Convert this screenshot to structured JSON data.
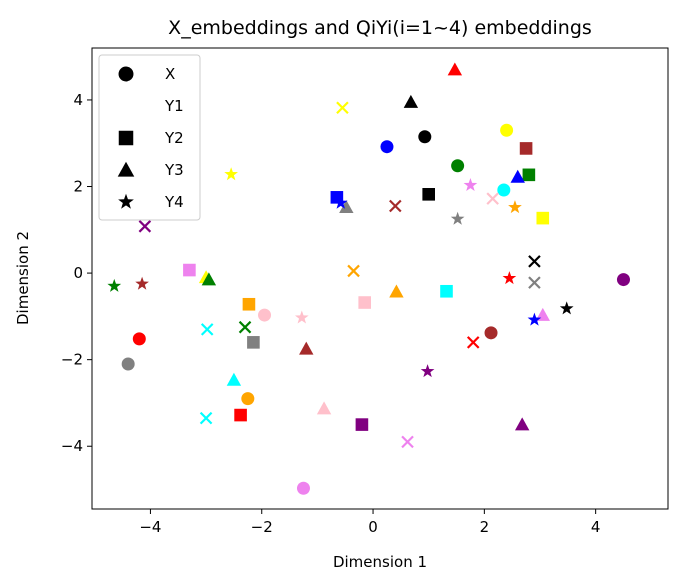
{
  "chart_data": {
    "type": "scatter",
    "title": "X_embeddings and QiYi(i=1~4) embeddings",
    "xlabel": "Dimension 1",
    "ylabel": "Dimension 2",
    "xlim": [
      -5.05,
      5.3
    ],
    "ylim": [
      -5.45,
      5.2
    ],
    "xticks": [
      -4,
      -2,
      0,
      2,
      4
    ],
    "yticks": [
      -4,
      -2,
      0,
      2,
      4
    ],
    "grid": false,
    "legend": {
      "placement": "upper-left",
      "entries": [
        {
          "label": "X",
          "marker": "circle"
        },
        {
          "label": "Y1",
          "marker": "x"
        },
        {
          "label": "Y2",
          "marker": "square"
        },
        {
          "label": "Y3",
          "marker": "triangle"
        },
        {
          "label": "Y4",
          "marker": "star"
        }
      ]
    },
    "series": [
      {
        "name": "X",
        "marker": "circle",
        "points": [
          {
            "x": 0.93,
            "y": 3.15,
            "color": "#000000"
          },
          {
            "x": 2.4,
            "y": 3.3,
            "color": "#ffff00"
          },
          {
            "x": 0.25,
            "y": 2.92,
            "color": "#0000ff"
          },
          {
            "x": 1.52,
            "y": 2.48,
            "color": "#008000"
          },
          {
            "x": 2.35,
            "y": 1.92,
            "color": "#00ffff"
          },
          {
            "x": 4.5,
            "y": -0.15,
            "color": "#800080"
          },
          {
            "x": 2.12,
            "y": -1.38,
            "color": "#a52a2a"
          },
          {
            "x": -4.2,
            "y": -1.52,
            "color": "#ff0000"
          },
          {
            "x": -1.95,
            "y": -0.97,
            "color": "#ffc0cb"
          },
          {
            "x": -4.4,
            "y": -2.1,
            "color": "#808080"
          },
          {
            "x": -2.25,
            "y": -2.9,
            "color": "#ffa500"
          },
          {
            "x": -1.25,
            "y": -4.97,
            "color": "#ee82ee"
          }
        ]
      },
      {
        "name": "Y1",
        "marker": "x",
        "points": [
          {
            "x": -0.55,
            "y": 3.82,
            "color": "#ffff00"
          },
          {
            "x": 0.4,
            "y": 1.55,
            "color": "#a52a2a"
          },
          {
            "x": -4.1,
            "y": 1.08,
            "color": "#800080"
          },
          {
            "x": 2.9,
            "y": 0.27,
            "color": "#000000"
          },
          {
            "x": 2.9,
            "y": -0.22,
            "color": "#808080"
          },
          {
            "x": -0.35,
            "y": 0.05,
            "color": "#ffa500"
          },
          {
            "x": 2.15,
            "y": 1.72,
            "color": "#ffc0cb"
          },
          {
            "x": -2.3,
            "y": -1.25,
            "color": "#008000"
          },
          {
            "x": -2.98,
            "y": -1.3,
            "color": "#00ffff"
          },
          {
            "x": 1.8,
            "y": -1.6,
            "color": "#ff0000"
          },
          {
            "x": -3.0,
            "y": -3.35,
            "color": "#00ffff"
          },
          {
            "x": 0.62,
            "y": -3.9,
            "color": "#ee82ee"
          }
        ]
      },
      {
        "name": "Y2",
        "marker": "square",
        "points": [
          {
            "x": 2.75,
            "y": 2.88,
            "color": "#a52a2a"
          },
          {
            "x": 2.8,
            "y": 2.27,
            "color": "#008000"
          },
          {
            "x": 1.0,
            "y": 1.82,
            "color": "#000000"
          },
          {
            "x": -0.65,
            "y": 1.75,
            "color": "#0000ff"
          },
          {
            "x": 3.05,
            "y": 1.27,
            "color": "#ffff00"
          },
          {
            "x": -3.3,
            "y": 0.07,
            "color": "#ee82ee"
          },
          {
            "x": -0.15,
            "y": -0.68,
            "color": "#ffc0cb"
          },
          {
            "x": 1.32,
            "y": -0.42,
            "color": "#00ffff"
          },
          {
            "x": -2.23,
            "y": -0.72,
            "color": "#ffa500"
          },
          {
            "x": -2.15,
            "y": -1.6,
            "color": "#808080"
          },
          {
            "x": -2.38,
            "y": -3.28,
            "color": "#ff0000"
          },
          {
            "x": -0.2,
            "y": -3.5,
            "color": "#800080"
          }
        ]
      },
      {
        "name": "Y3",
        "marker": "triangle",
        "points": [
          {
            "x": 1.47,
            "y": 4.7,
            "color": "#ff0000"
          },
          {
            "x": 0.68,
            "y": 3.95,
            "color": "#000000"
          },
          {
            "x": 2.6,
            "y": 2.22,
            "color": "#0000ff"
          },
          {
            "x": -0.48,
            "y": 1.52,
            "color": "#808080"
          },
          {
            "x": -3.0,
            "y": -0.1,
            "color": "#ffff00"
          },
          {
            "x": -2.95,
            "y": -0.15,
            "color": "#008000"
          },
          {
            "x": 0.42,
            "y": -0.43,
            "color": "#ffa500"
          },
          {
            "x": 3.05,
            "y": -0.97,
            "color": "#ee82ee"
          },
          {
            "x": -1.2,
            "y": -1.75,
            "color": "#a52a2a"
          },
          {
            "x": -2.5,
            "y": -2.47,
            "color": "#00ffff"
          },
          {
            "x": -0.88,
            "y": -3.13,
            "color": "#ffc0cb"
          },
          {
            "x": 2.68,
            "y": -3.5,
            "color": "#800080"
          }
        ]
      },
      {
        "name": "Y4",
        "marker": "star",
        "points": [
          {
            "x": -2.55,
            "y": 2.28,
            "color": "#ffff00"
          },
          {
            "x": 1.75,
            "y": 2.03,
            "color": "#ee82ee"
          },
          {
            "x": -0.58,
            "y": 1.62,
            "color": "#0000ff"
          },
          {
            "x": 2.55,
            "y": 1.52,
            "color": "#ffa500"
          },
          {
            "x": 1.52,
            "y": 1.25,
            "color": "#808080"
          },
          {
            "x": -4.65,
            "y": -0.3,
            "color": "#008000"
          },
          {
            "x": -4.15,
            "y": -0.25,
            "color": "#a52a2a"
          },
          {
            "x": 2.45,
            "y": -0.12,
            "color": "#ff0000"
          },
          {
            "x": 3.48,
            "y": -0.82,
            "color": "#000000"
          },
          {
            "x": 2.9,
            "y": -1.08,
            "color": "#0000ff"
          },
          {
            "x": -1.28,
            "y": -1.03,
            "color": "#ffc0cb"
          },
          {
            "x": 0.98,
            "y": -2.27,
            "color": "#800080"
          }
        ]
      }
    ]
  }
}
